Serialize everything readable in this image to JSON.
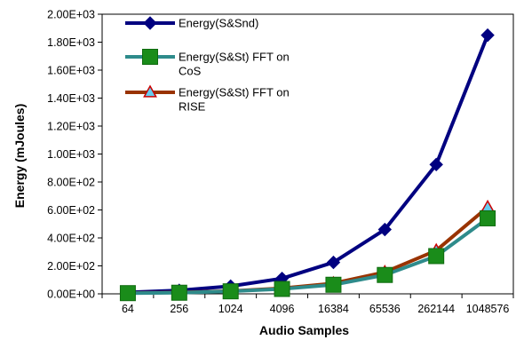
{
  "chart_data": {
    "type": "line",
    "title": "",
    "xlabel": "Audio Samples",
    "ylabel": "Energy (mJoules)",
    "categories": [
      "64",
      "256",
      "1024",
      "4096",
      "16384",
      "65536",
      "262144",
      "1048576"
    ],
    "y_ticks": [
      "0.00E+00",
      "2.00E+02",
      "4.00E+02",
      "6.00E+02",
      "8.00E+02",
      "1.00E+03",
      "1.20E+03",
      "1.40E+03",
      "1.60E+03",
      "1.80E+03",
      "2.00E+03"
    ],
    "ylim": [
      0,
      2000
    ],
    "grid": false,
    "legend_position": "top-left",
    "series": [
      {
        "name": "Energy(S&Snd)",
        "marker": "diamond",
        "color": "#000080",
        "marker_fill": "#000080",
        "marker_stroke": "#000080",
        "values": [
          10,
          25,
          55,
          110,
          225,
          460,
          925,
          1850
        ]
      },
      {
        "name": "Energy(S&St) FFT on CoS",
        "marker": "square",
        "color": "#2E8B8B",
        "marker_fill": "#1A8C1A",
        "marker_stroke": "#0F6B0F",
        "values": [
          5,
          8,
          18,
          35,
          65,
          135,
          270,
          540
        ]
      },
      {
        "name": "Energy(S&St) FFT on RISE",
        "marker": "triangle",
        "color": "#993300",
        "marker_fill": "#66CCEE",
        "marker_stroke": "#CC0000",
        "values": [
          6,
          10,
          20,
          40,
          75,
          155,
          310,
          620
        ]
      }
    ]
  }
}
